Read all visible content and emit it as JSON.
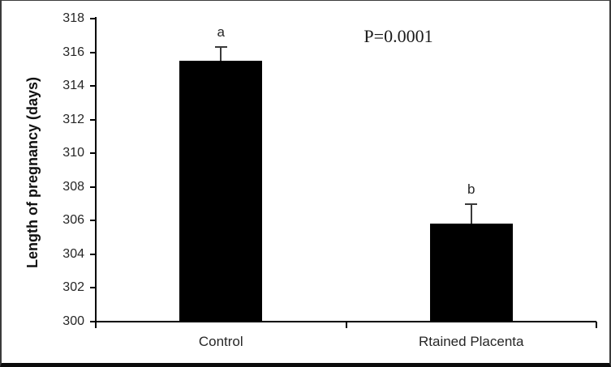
{
  "chart_data": {
    "type": "bar",
    "title": "",
    "categories": [
      "Control",
      "Rtained Placenta"
    ],
    "values": [
      315.5,
      305.8
    ],
    "errors_plus": [
      0.8,
      1.2
    ],
    "bar_labels": [
      "a",
      "b"
    ],
    "annotation": "P=0.0001",
    "xlabel": "",
    "ylabel": "Length of pregnancy (days)",
    "ylim": [
      300,
      318
    ],
    "yticks": [
      300,
      302,
      304,
      306,
      308,
      310,
      312,
      314,
      316,
      318
    ],
    "bar_color": "#000000",
    "error_bar_color": "#3a3a3a",
    "grid": false,
    "legend_position": "none"
  }
}
